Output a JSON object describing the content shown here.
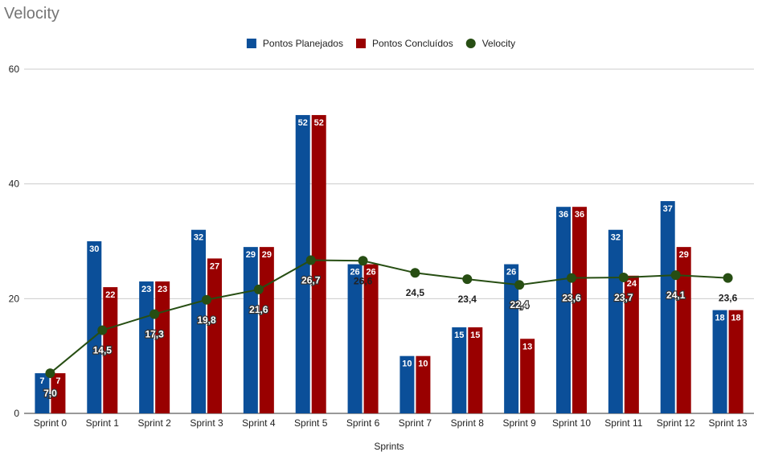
{
  "chart_data": {
    "type": "bar",
    "title": "Velocity",
    "xlabel": "Sprints",
    "ylabel": "",
    "ylim": [
      0,
      60
    ],
    "yticks": [
      0,
      20,
      40,
      60
    ],
    "grid": true,
    "legend_position": "top",
    "categories": [
      "Sprint 0",
      "Sprint 1",
      "Sprint 2",
      "Sprint 3",
      "Sprint 4",
      "Sprint 5",
      "Sprint 6",
      "Sprint 7",
      "Sprint 8",
      "Sprint 9",
      "Sprint 10",
      "Sprint 11",
      "Sprint 12",
      "Sprint 13"
    ],
    "series": [
      {
        "name": "Pontos Planejados",
        "type": "bar",
        "color": "#0b4f99",
        "values": [
          7,
          30,
          23,
          32,
          29,
          52,
          26,
          10,
          15,
          26,
          36,
          32,
          37,
          18
        ]
      },
      {
        "name": "Pontos Concluídos",
        "type": "bar",
        "color": "#990000",
        "values": [
          7,
          22,
          23,
          27,
          29,
          52,
          26,
          10,
          15,
          13,
          36,
          24,
          29,
          18
        ]
      },
      {
        "name": "Velocity",
        "type": "line",
        "color": "#274e13",
        "values": [
          7.0,
          14.5,
          17.3,
          19.8,
          21.6,
          26.7,
          26.6,
          24.5,
          23.4,
          22.4,
          23.6,
          23.7,
          24.1,
          23.6
        ],
        "labels": [
          "7,0",
          "14,5",
          "17,3",
          "19,8",
          "21,6",
          "26,7",
          "26,6",
          "24,5",
          "23,4",
          "22,4",
          "23,6",
          "23,7",
          "24,1",
          "23,6"
        ]
      }
    ]
  }
}
